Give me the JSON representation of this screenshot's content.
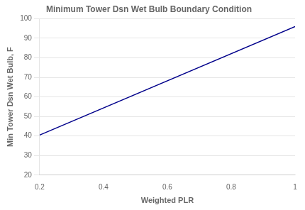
{
  "chart_data": {
    "type": "line",
    "title": "Minimum Tower Dsn Wet Bulb Boundary Condition",
    "xlabel": "Weighted PLR",
    "ylabel": "Min Tower Dsn Wet Bulb, F",
    "x": [
      0.2,
      1.0
    ],
    "values": [
      40.5,
      96.0
    ],
    "color": "#00008B",
    "xlim": [
      0.2,
      1.0
    ],
    "ylim": [
      20,
      100
    ],
    "xticks": [
      0.2,
      0.4,
      0.6,
      0.8,
      1.0
    ],
    "yticks": [
      20,
      30,
      40,
      50,
      60,
      70,
      80,
      90,
      100
    ],
    "grid": "y"
  }
}
